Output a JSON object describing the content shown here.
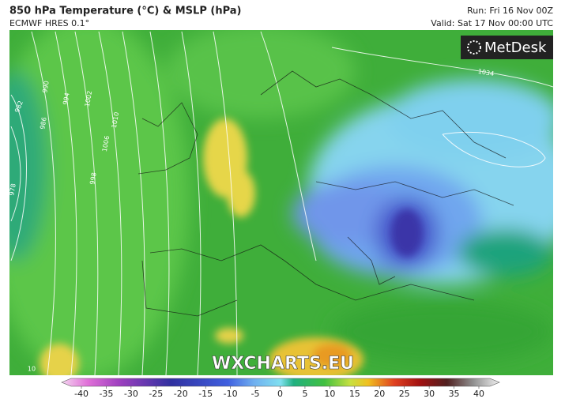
{
  "header": {
    "title": "850 hPa Temperature (°C) & MSLP (hPa)",
    "model": "ECMWF HRES 0.1°",
    "run": "Run: Fri 16 Nov 00Z",
    "valid": "Valid: Sat 17 Nov 00:00 UTC"
  },
  "logo": "MetDesk",
  "watermark": "WXCHARTS.EU",
  "isobar_labels": [
    "990",
    "994",
    "1002",
    "1010",
    "1006",
    "998",
    "982",
    "986",
    "978",
    "1034",
    "10"
  ],
  "colorbar": {
    "ticks": [
      -40,
      -35,
      -30,
      -25,
      -20,
      -15,
      -10,
      -5,
      0,
      5,
      10,
      15,
      20,
      25,
      30,
      35,
      40
    ]
  }
}
